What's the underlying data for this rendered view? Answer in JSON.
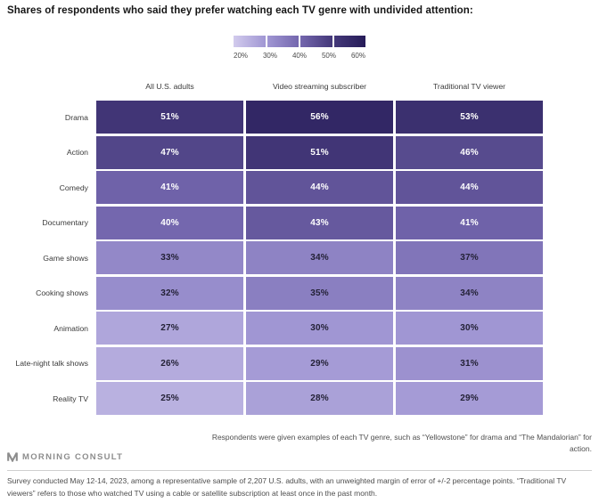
{
  "title": "Shares of respondents who said they prefer watching each TV genre with undivided attention:",
  "chart_data": {
    "type": "heatmap",
    "title": "Shares of respondents who said they prefer watching each TV genre with undivided attention:",
    "columns": [
      "All U.S. adults",
      "Video streaming subscriber",
      "Traditional TV viewer"
    ],
    "rows": [
      "Drama",
      "Action",
      "Comedy",
      "Documentary",
      "Game shows",
      "Cooking shows",
      "Animation",
      "Late-night talk shows",
      "Reality TV"
    ],
    "values": [
      [
        51,
        56,
        53
      ],
      [
        47,
        51,
        46
      ],
      [
        41,
        44,
        44
      ],
      [
        40,
        43,
        41
      ],
      [
        33,
        34,
        37
      ],
      [
        32,
        35,
        34
      ],
      [
        27,
        30,
        30
      ],
      [
        26,
        29,
        31
      ],
      [
        25,
        28,
        29
      ]
    ],
    "value_suffix": "%",
    "legend_position": "top-center",
    "color_scale": {
      "min": 20,
      "max": 60,
      "ticks": [
        "20%",
        "30%",
        "40%",
        "50%",
        "60%"
      ],
      "stops": [
        {
          "value": 20,
          "color": "#d2cbed"
        },
        {
          "value": 30,
          "color": "#a096d3"
        },
        {
          "value": 40,
          "color": "#7467ae"
        },
        {
          "value": 50,
          "color": "#443879"
        },
        {
          "value": 60,
          "color": "#261c58"
        }
      ]
    },
    "text_colors": {
      "light": "#ffffff",
      "dark": "#232136",
      "threshold": 40
    }
  },
  "footer": {
    "note": "Respondents were given examples of each TV genre, such as “Yellowstone” for drama and “The Mandalorian” for action.",
    "logo_text": "MORNING CONSULT",
    "source": "Survey conducted May 12-14, 2023, among a representative sample of 2,207 U.S. adults, with an unweighted margin of error of +/-2 percentage points. “Traditional TV viewers” refers to those who watched TV using a cable or satellite subscription at least once in the past month."
  }
}
